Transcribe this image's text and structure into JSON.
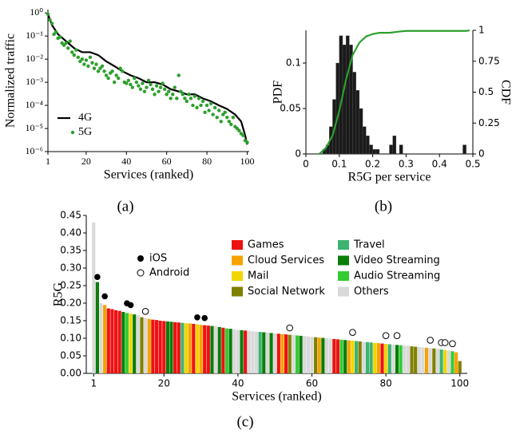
{
  "chart_data": [
    {
      "type": "line",
      "caption": "(a)",
      "xlabel": "Services (ranked)",
      "ylabel": "Normalized traffic",
      "log_y": true,
      "xlim": [
        1,
        101
      ],
      "xticks": [
        1,
        20,
        40,
        60,
        80,
        100
      ],
      "ylim": [
        1e-06,
        1.4
      ],
      "yticks": [
        {
          "value": 1,
          "label": "10⁰"
        },
        {
          "value": 0.1,
          "label": "10⁻¹"
        },
        {
          "value": 0.01,
          "label": "10⁻²"
        },
        {
          "value": 0.001,
          "label": "10⁻³"
        },
        {
          "value": 0.0001,
          "label": "10⁻⁴"
        },
        {
          "value": 1e-05,
          "label": "10⁻⁵"
        },
        {
          "value": 1e-06,
          "label": "10⁻⁶"
        }
      ],
      "series": [
        {
          "name": "4G",
          "kind": "line",
          "color": "#000000",
          "x": [
            1,
            3,
            6,
            10,
            14,
            18,
            22,
            26,
            30,
            34,
            38,
            42,
            46,
            50,
            54,
            58,
            62,
            66,
            70,
            74,
            78,
            82,
            86,
            90,
            94,
            97,
            99,
            100
          ],
          "values": [
            0.9,
            0.3,
            0.12,
            0.06,
            0.03,
            0.02,
            0.02,
            0.015,
            0.008,
            0.005,
            0.003,
            0.002,
            0.0015,
            0.001,
            0.001,
            0.0008,
            0.0005,
            0.0004,
            0.0003,
            0.0003,
            0.0002,
            0.00015,
            0.0001,
            7e-05,
            4e-05,
            2e-05,
            5e-06,
            2e-06
          ]
        },
        {
          "name": "5G",
          "kind": "scatter",
          "color": "#2ca02c",
          "x": [
            1,
            2,
            3,
            4,
            5,
            6,
            7,
            8,
            9,
            10,
            11,
            12,
            13,
            14,
            15,
            16,
            17,
            18,
            19,
            20,
            21,
            22,
            23,
            24,
            25,
            26,
            27,
            28,
            29,
            30,
            31,
            32,
            33,
            34,
            35,
            36,
            37,
            38,
            39,
            40,
            41,
            42,
            43,
            44,
            45,
            46,
            47,
            48,
            49,
            50,
            51,
            52,
            53,
            54,
            55,
            56,
            57,
            58,
            59,
            60,
            61,
            62,
            63,
            64,
            65,
            66,
            67,
            68,
            69,
            70,
            71,
            72,
            73,
            74,
            75,
            76,
            77,
            78,
            79,
            80,
            81,
            82,
            83,
            84,
            85,
            86,
            87,
            88,
            89,
            90,
            91,
            92,
            93,
            94,
            95,
            96,
            97,
            98,
            99,
            100
          ],
          "values": [
            0.9,
            0.5,
            0.35,
            0.12,
            0.15,
            0.08,
            0.09,
            0.05,
            0.04,
            0.05,
            0.03,
            0.06,
            0.02,
            0.015,
            0.025,
            0.012,
            0.008,
            0.01,
            0.006,
            0.009,
            0.005,
            0.012,
            0.007,
            0.004,
            0.006,
            0.003,
            0.004,
            0.005,
            0.003,
            0.002,
            0.0015,
            0.0025,
            0.003,
            0.001,
            0.002,
            0.0015,
            0.004,
            0.003,
            0.001,
            0.0009,
            0.0012,
            0.0008,
            0.0006,
            0.0015,
            0.001,
            0.0007,
            0.0005,
            0.0009,
            0.0004,
            0.0006,
            0.0012,
            0.0008,
            0.0005,
            0.0003,
            0.0007,
            0.0004,
            0.0006,
            0.0009,
            0.0005,
            0.0003,
            0.0004,
            0.0002,
            0.0003,
            0.0006,
            0.0002,
            0.002,
            0.0004,
            0.0003,
            0.0002,
            0.00015,
            0.0003,
            0.0002,
            0.0001,
            0.00025,
            8e-05,
            0.0002,
            0.0001,
            0.00015,
            5e-05,
            0.0001,
            6e-05,
            0.00012,
            4e-05,
            8e-05,
            3e-05,
            6e-05,
            2e-05,
            4e-05,
            5e-05,
            3e-05,
            2e-05,
            1.5e-05,
            3e-05,
            1.2e-05,
            1e-05,
            8e-06,
            6e-06,
            5e-06,
            3e-06,
            2.5e-06
          ]
        }
      ]
    },
    {
      "type": "histogram",
      "caption": "(b)",
      "xlabel": "R5G per service",
      "ylabel": "PDF",
      "y2label": "CDF",
      "color": "#1a1a1a",
      "xlim": [
        0,
        0.5
      ],
      "xticks": [
        0,
        0.1,
        0.2,
        0.3,
        0.4,
        0.5
      ],
      "ylim": [
        0,
        0.136
      ],
      "yticks": [
        0,
        0.05,
        0.1
      ],
      "y2lim": [
        0,
        1
      ],
      "y2ticks": [
        0,
        0.25,
        0.5,
        0.75,
        1
      ],
      "bins": [
        0.04,
        0.05,
        0.06,
        0.07,
        0.08,
        0.09,
        0.1,
        0.11,
        0.12,
        0.13,
        0.14,
        0.15,
        0.16,
        0.17,
        0.18,
        0.19,
        0.2,
        0.21,
        0.22,
        0.23,
        0.24,
        0.25,
        0.26,
        0.27,
        0.28,
        0.29,
        0.3,
        0.31,
        0.32,
        0.33,
        0.34,
        0.35,
        0.36,
        0.37,
        0.38,
        0.39,
        0.4,
        0.41,
        0.42,
        0.43,
        0.44,
        0.45,
        0.46,
        0.47,
        0.48,
        0.49
      ],
      "values": [
        0,
        0.005,
        0.01,
        0.03,
        0.06,
        0.1,
        0.13,
        0.12,
        0.13,
        0.12,
        0.09,
        0.07,
        0.05,
        0.03,
        0.02,
        0.01,
        0.005,
        0.005,
        0,
        0,
        0,
        0.01,
        0.02,
        0,
        0.01,
        0,
        0,
        0,
        0,
        0,
        0,
        0,
        0,
        0,
        0,
        0,
        0,
        0,
        0,
        0,
        0,
        0,
        0,
        0.01,
        0
      ],
      "series": [
        {
          "kind": "line",
          "axis": "y2",
          "color": "#2ca02c",
          "x": [
            0.04,
            0.06,
            0.08,
            0.1,
            0.12,
            0.14,
            0.16,
            0.18,
            0.2,
            0.22,
            0.25,
            0.28,
            0.3,
            0.48,
            0.49
          ],
          "values": [
            0,
            0.05,
            0.15,
            0.35,
            0.6,
            0.8,
            0.9,
            0.95,
            0.97,
            0.98,
            0.98,
            0.99,
            0.995,
            0.995,
            1
          ]
        }
      ]
    },
    {
      "type": "bar",
      "caption": "(c)",
      "xlabel": "Services (ranked)",
      "ylabel": "R5G",
      "xlim": [
        -1,
        102
      ],
      "xticks": [
        1,
        20,
        40,
        60,
        80,
        100
      ],
      "ylim": [
        0,
        0.45
      ],
      "yticks": [
        {
          "value": 0,
          "label": "0.00"
        },
        0.05,
        {
          "value": 0.1,
          "label": "0.10"
        },
        0.15,
        {
          "value": 0.2,
          "label": "0.20"
        },
        0.25,
        {
          "value": 0.3,
          "label": "0.30"
        },
        0.35,
        {
          "value": 0.4,
          "label": "0.40"
        },
        0.45
      ],
      "series": [
        {
          "name": "Games",
          "color": "#ee1111",
          "x": [
            5,
            6,
            7,
            8,
            17,
            18,
            19,
            20,
            23,
            24,
            28,
            31,
            32,
            36,
            42,
            51,
            53,
            66,
            67,
            79
          ],
          "values": [
            0.185,
            0.183,
            0.18,
            0.178,
            0.153,
            0.152,
            0.15,
            0.149,
            0.146,
            0.145,
            0.141,
            0.137,
            0.136,
            0.13,
            0.122,
            0.113,
            0.111,
            0.098,
            0.097,
            0.085
          ]
        },
        {
          "name": "Cloud Services",
          "color": "#f5a300",
          "x": [
            4,
            16,
            27,
            30,
            52,
            62,
            70,
            78,
            91,
            99
          ],
          "values": [
            0.195,
            0.155,
            0.142,
            0.138,
            0.112,
            0.102,
            0.094,
            0.086,
            0.073,
            0.06
          ]
        },
        {
          "name": "Mail",
          "color": "#f2d600",
          "x": [
            11,
            26,
            29,
            71,
            77,
            80,
            96
          ],
          "values": [
            0.17,
            0.143,
            0.14,
            0.093,
            0.087,
            0.084,
            0.066
          ]
        },
        {
          "name": "Social Network",
          "color": "#808000",
          "x": [
            14,
            54,
            61,
            73,
            87,
            88,
            93,
            100
          ],
          "values": [
            0.16,
            0.11,
            0.103,
            0.091,
            0.077,
            0.076,
            0.071,
            0.035
          ]
        },
        {
          "name": "Travel",
          "color": "#3cb371",
          "x": [
            25,
            46,
            72,
            75,
            76,
            81,
            95
          ],
          "values": [
            0.144,
            0.118,
            0.092,
            0.089,
            0.088,
            0.083,
            0.068
          ]
        },
        {
          "name": "Video Streaming",
          "color": "#0a7d0a",
          "x": [
            2,
            9,
            12,
            21,
            22,
            33,
            35,
            38,
            41,
            47,
            49,
            57,
            63,
            69,
            83
          ],
          "values": [
            0.26,
            0.175,
            0.168,
            0.148,
            0.147,
            0.135,
            0.132,
            0.127,
            0.123,
            0.117,
            0.115,
            0.107,
            0.101,
            0.095,
            0.081
          ]
        },
        {
          "name": "Audio Streaming",
          "color": "#33cc33",
          "x": [
            10,
            37,
            56,
            68,
            84,
            98
          ],
          "values": [
            0.172,
            0.128,
            0.108,
            0.096,
            0.08,
            0.063
          ]
        },
        {
          "name": "Others",
          "color": "#d9d9d9",
          "x": [
            1,
            3,
            13,
            15,
            34,
            39,
            40,
            43,
            44,
            45,
            48,
            50,
            55,
            58,
            59,
            60,
            64,
            65,
            74,
            82,
            85,
            86,
            89,
            90,
            92,
            94,
            97
          ],
          "values": [
            0.43,
            0.2,
            0.165,
            0.158,
            0.134,
            0.125,
            0.124,
            0.121,
            0.12,
            0.119,
            0.116,
            0.114,
            0.109,
            0.106,
            0.105,
            0.104,
            0.1,
            0.099,
            0.09,
            0.082,
            0.079,
            0.078,
            0.075,
            0.074,
            0.072,
            0.07,
            0.065
          ]
        }
      ],
      "markers": [
        {
          "name": "iOS",
          "filled": true,
          "color": "#000000",
          "x": [
            2,
            4,
            10,
            11,
            29,
            31
          ],
          "values": [
            0.27,
            0.215,
            0.195,
            0.19,
            0.155,
            0.153
          ]
        },
        {
          "name": "Android",
          "filled": false,
          "color": "#000000",
          "x": [
            15,
            54,
            71,
            80,
            83,
            92,
            95,
            96,
            98
          ],
          "values": [
            0.172,
            0.125,
            0.112,
            0.103,
            0.103,
            0.09,
            0.083,
            0.083,
            0.08
          ]
        }
      ]
    }
  ]
}
